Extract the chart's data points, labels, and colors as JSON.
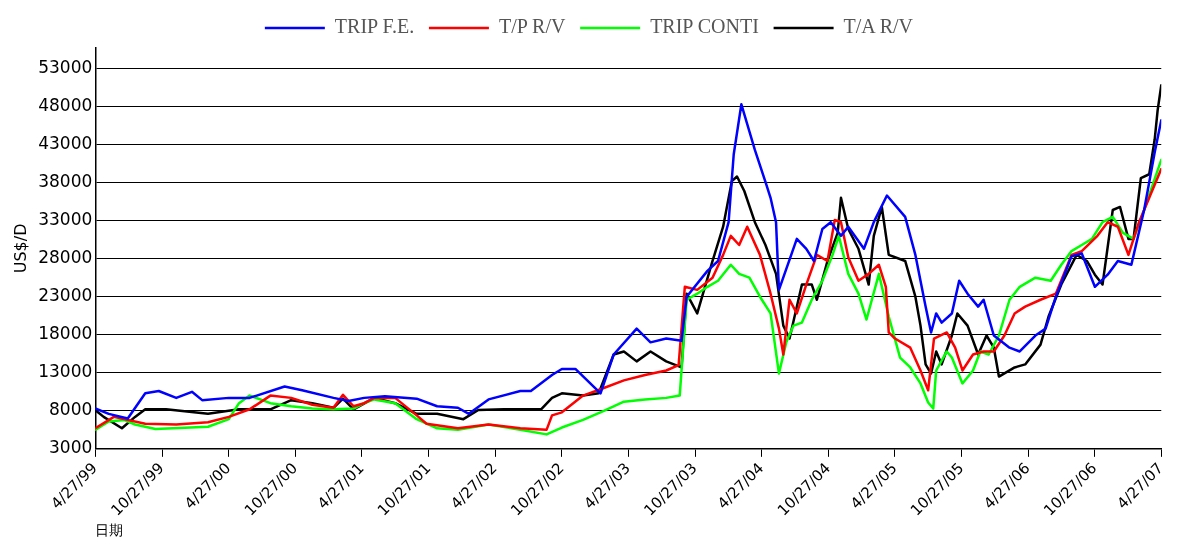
{
  "chart_data": {
    "type": "line",
    "xlabel": "日期",
    "ylabel": "US$/D",
    "legend": "top",
    "grid": "y",
    "marker": "none",
    "line_style": "solid",
    "xlim": [
      "1999-04-27",
      "2007-04-27"
    ],
    "xticks": [
      {
        "value": "1999-04-27",
        "label": "4/27/99"
      },
      {
        "value": "1999-10-27",
        "label": "10/27/99"
      },
      {
        "value": "2000-04-27",
        "label": "4/27/00"
      },
      {
        "value": "2000-10-27",
        "label": "10/27/00"
      },
      {
        "value": "2001-04-27",
        "label": "4/27/01"
      },
      {
        "value": "2001-10-27",
        "label": "10/27/01"
      },
      {
        "value": "2002-04-27",
        "label": "4/27/02"
      },
      {
        "value": "2002-10-27",
        "label": "10/27/02"
      },
      {
        "value": "2003-04-27",
        "label": "4/27/03"
      },
      {
        "value": "2003-10-27",
        "label": "10/27/03"
      },
      {
        "value": "2004-04-27",
        "label": "4/27/04"
      },
      {
        "value": "2004-10-27",
        "label": "10/27/04"
      },
      {
        "value": "2005-04-27",
        "label": "4/27/05"
      },
      {
        "value": "2005-10-27",
        "label": "10/27/05"
      },
      {
        "value": "2006-04-27",
        "label": "4/27/06"
      },
      {
        "value": "2006-10-27",
        "label": "10/27/06"
      },
      {
        "value": "2007-04-27",
        "label": "4/27/07"
      }
    ],
    "ylim": [
      3000,
      55700
    ],
    "yticks": [
      3000,
      8000,
      13000,
      18000,
      23000,
      28000,
      33000,
      38000,
      43000,
      48000,
      53000
    ],
    "series": [
      {
        "name": "TRIP F.E.",
        "color": "#0000ff",
        "x": [
          "1999-04-27",
          "1999-06-03",
          "1999-07-25",
          "1999-09-11",
          "1999-10-18",
          "1999-12-05",
          "2000-01-17",
          "2000-02-14",
          "2000-04-27",
          "2000-06-23",
          "2000-09-27",
          "2000-11-14",
          "2001-02-08",
          "2001-03-21",
          "2001-05-03",
          "2001-06-29",
          "2001-09-24",
          "2001-11-19",
          "2002-01-15",
          "2002-02-14",
          "2002-04-09",
          "2002-07-05",
          "2002-08-03",
          "2002-09-30",
          "2002-10-27",
          "2002-12-03",
          "2003-02-10",
          "2003-03-18",
          "2003-05-20",
          "2003-06-27",
          "2003-08-09",
          "2003-09-20",
          "2003-10-04",
          "2003-11-30",
          "2003-12-29",
          "2004-01-27",
          "2004-02-10",
          "2004-03-02",
          "2004-04-08",
          "2004-05-07",
          "2004-05-21",
          "2004-06-05",
          "2004-06-13",
          "2004-08-01",
          "2004-08-27",
          "2004-09-17",
          "2004-10-10",
          "2004-11-02",
          "2004-11-30",
          "2004-12-20",
          "2005-02-01",
          "2005-02-28",
          "2005-04-05",
          "2005-05-25",
          "2005-06-22",
          "2005-07-20",
          "2005-08-04",
          "2005-08-18",
          "2005-09-02",
          "2005-09-30",
          "2005-10-20",
          "2005-11-12",
          "2005-12-11",
          "2005-12-26",
          "2006-01-23",
          "2006-03-07",
          "2006-04-04",
          "2006-05-17",
          "2006-06-14",
          "2006-07-12",
          "2006-08-24",
          "2006-09-21",
          "2006-10-27",
          "2006-12-01",
          "2006-12-29",
          "2007-02-04",
          "2007-03-11",
          "2007-04-09",
          "2007-04-27"
        ],
        "values": [
          8300,
          7600,
          7000,
          10300,
          10600,
          9700,
          10500,
          9400,
          9700,
          9700,
          11200,
          10700,
          9700,
          9300,
          9700,
          9900,
          9600,
          8600,
          8400,
          7600,
          9500,
          10600,
          10600,
          12700,
          13500,
          13500,
          10300,
          15400,
          18800,
          17000,
          17500,
          17200,
          23000,
          26400,
          27700,
          32800,
          41700,
          48300,
          42300,
          38100,
          36000,
          32800,
          23900,
          30600,
          29300,
          27700,
          31900,
          32800,
          31000,
          32200,
          29300,
          32800,
          36300,
          33500,
          28500,
          21700,
          18300,
          20800,
          19600,
          20800,
          25100,
          23400,
          21700,
          22600,
          17900,
          16300,
          15800,
          17900,
          18800,
          23000,
          28300,
          28700,
          24300,
          25900,
          27700,
          27200,
          34400,
          42000,
          46200
        ]
      },
      {
        "name": "T/P R/V",
        "color": "#ff0000",
        "x": [
          "1999-04-27",
          "1999-06-17",
          "1999-09-11",
          "1999-12-05",
          "2000-03-01",
          "2000-04-27",
          "2000-06-23",
          "2000-08-19",
          "2000-10-15",
          "2000-12-12",
          "2001-02-08",
          "2001-03-06",
          "2001-04-04",
          "2001-05-03",
          "2001-05-31",
          "2001-07-27",
          "2001-09-24",
          "2001-10-21",
          "2002-01-15",
          "2002-04-09",
          "2002-07-05",
          "2002-09-15",
          "2002-09-30",
          "2002-10-27",
          "2002-12-24",
          "2003-02-19",
          "2003-04-15",
          "2003-06-12",
          "2003-08-09",
          "2003-09-12",
          "2003-09-29",
          "2003-11-02",
          "2003-12-14",
          "2004-01-12",
          "2004-02-02",
          "2004-02-25",
          "2004-03-18",
          "2004-04-22",
          "2004-05-21",
          "2004-06-13",
          "2004-06-25",
          "2004-07-12",
          "2004-08-01",
          "2004-08-27",
          "2004-09-25",
          "2004-10-24",
          "2004-11-13",
          "2004-11-30",
          "2004-12-20",
          "2005-01-17",
          "2005-02-14",
          "2005-03-14",
          "2005-04-02",
          "2005-04-10",
          "2005-04-27",
          "2005-06-08",
          "2005-07-06",
          "2005-07-27",
          "2005-08-12",
          "2005-09-16",
          "2005-10-09",
          "2005-10-29",
          "2005-11-27",
          "2005-12-26",
          "2006-01-23",
          "2006-02-21",
          "2006-03-21",
          "2006-04-19",
          "2006-05-31",
          "2006-07-12",
          "2006-08-24",
          "2006-09-21",
          "2006-11-03",
          "2006-12-01",
          "2006-12-29",
          "2007-01-27",
          "2007-02-25",
          "2007-03-25",
          "2007-04-27"
        ],
        "values": [
          5700,
          7200,
          6300,
          6200,
          6500,
          7200,
          8200,
          10000,
          9700,
          8800,
          8400,
          10100,
          8600,
          9000,
          9700,
          9700,
          7400,
          6300,
          5700,
          6200,
          5700,
          5500,
          7400,
          7800,
          10000,
          11000,
          12000,
          12700,
          13300,
          14000,
          24300,
          23900,
          25500,
          28500,
          31000,
          29800,
          32200,
          28500,
          23400,
          18800,
          15400,
          22600,
          20800,
          24600,
          28500,
          27700,
          33100,
          32800,
          28200,
          25100,
          26000,
          27200,
          24300,
          18300,
          17500,
          16300,
          13300,
          10700,
          17500,
          18300,
          16300,
          13300,
          15400,
          15800,
          15800,
          17900,
          20800,
          21700,
          22600,
          23400,
          28500,
          29000,
          31000,
          32800,
          32200,
          28500,
          32800,
          36000,
          39800
        ]
      },
      {
        "name": "TRIP CONTI",
        "color": "#00ff00",
        "x": [
          "1999-04-27",
          "1999-06-03",
          "1999-07-15",
          "1999-08-14",
          "1999-10-09",
          "2000-03-01",
          "2000-04-27",
          "2000-05-25",
          "2000-06-23",
          "2000-08-19",
          "2000-10-15",
          "2000-12-12",
          "2001-02-08",
          "2001-04-04",
          "2001-05-03",
          "2001-05-31",
          "2001-07-27",
          "2001-09-24",
          "2001-11-19",
          "2002-01-15",
          "2002-04-09",
          "2002-07-05",
          "2002-09-15",
          "2002-10-27",
          "2002-12-24",
          "2003-02-19",
          "2003-04-15",
          "2003-06-12",
          "2003-08-09",
          "2003-09-15",
          "2003-10-04",
          "2003-11-02",
          "2003-11-30",
          "2003-12-29",
          "2004-02-02",
          "2004-02-25",
          "2004-03-24",
          "2004-04-22",
          "2004-05-21",
          "2004-06-13",
          "2004-07-03",
          "2004-07-23",
          "2004-08-15",
          "2004-09-11",
          "2004-10-10",
          "2004-11-07",
          "2004-11-24",
          "2004-12-20",
          "2005-01-17",
          "2005-02-08",
          "2005-03-14",
          "2005-04-10",
          "2005-05-11",
          "2005-06-08",
          "2005-07-06",
          "2005-07-27",
          "2005-08-10",
          "2005-08-18",
          "2005-09-16",
          "2005-09-30",
          "2005-10-29",
          "2005-11-27",
          "2005-12-17",
          "2006-01-09",
          "2006-02-06",
          "2006-03-07",
          "2006-04-04",
          "2006-05-17",
          "2006-06-28",
          "2006-07-27",
          "2006-08-24",
          "2006-09-21",
          "2006-10-19",
          "2006-11-17",
          "2006-12-15",
          "2007-01-12",
          "2007-02-10",
          "2007-03-11",
          "2007-04-09",
          "2007-04-27"
        ],
        "values": [
          5500,
          6600,
          6800,
          6200,
          5600,
          5900,
          6900,
          9000,
          10000,
          9000,
          8600,
          8300,
          8200,
          8300,
          9000,
          9500,
          9000,
          6900,
          5700,
          5500,
          6200,
          5500,
          4900,
          5800,
          6800,
          8000,
          9200,
          9500,
          9700,
          10000,
          22600,
          23400,
          24300,
          25100,
          27200,
          26000,
          25500,
          23000,
          20800,
          12900,
          17000,
          19200,
          19600,
          22600,
          25100,
          28500,
          31000,
          26000,
          23400,
          20000,
          26000,
          20400,
          15000,
          13700,
          11600,
          9100,
          8300,
          13300,
          15800,
          15000,
          11600,
          13300,
          15800,
          15400,
          17900,
          22600,
          24300,
          25500,
          25100,
          27200,
          29000,
          29800,
          30600,
          32800,
          33500,
          31400,
          30600,
          34400,
          38500,
          41000
        ]
      },
      {
        "name": "T/A R/V",
        "color": "#000000",
        "x": [
          "1999-04-27",
          "1999-05-20",
          "1999-07-09",
          "1999-08-14",
          "1999-09-11",
          "1999-11-07",
          "2000-03-01",
          "2000-05-25",
          "2000-08-19",
          "2000-10-15",
          "2000-12-12",
          "2001-02-08",
          "2001-03-06",
          "2001-04-04",
          "2001-05-31",
          "2001-07-27",
          "2001-09-24",
          "2001-11-19",
          "2002-01-30",
          "2002-03-12",
          "2002-05-21",
          "2002-08-31",
          "2002-09-30",
          "2002-10-27",
          "2002-12-24",
          "2003-02-05",
          "2003-03-18",
          "2003-04-15",
          "2003-05-20",
          "2003-06-27",
          "2003-08-09",
          "2003-09-20",
          "2003-10-04",
          "2003-11-02",
          "2003-12-14",
          "2004-01-12",
          "2004-02-05",
          "2004-02-19",
          "2004-03-10",
          "2004-04-08",
          "2004-05-07",
          "2004-06-05",
          "2004-06-25",
          "2004-07-12",
          "2004-08-15",
          "2004-09-11",
          "2004-09-25",
          "2004-10-24",
          "2004-11-21",
          "2004-11-30",
          "2004-12-20",
          "2005-01-17",
          "2005-02-14",
          "2005-02-28",
          "2005-03-22",
          "2005-04-10",
          "2005-05-25",
          "2005-06-22",
          "2005-07-06",
          "2005-07-20",
          "2005-08-04",
          "2005-08-18",
          "2005-09-02",
          "2005-09-30",
          "2005-10-15",
          "2005-11-12",
          "2005-12-11",
          "2006-01-03",
          "2006-01-23",
          "2006-02-06",
          "2006-03-21",
          "2006-04-19",
          "2006-05-31",
          "2006-06-22",
          "2006-07-27",
          "2006-09-07",
          "2006-10-05",
          "2006-10-27",
          "2006-11-17",
          "2006-12-15",
          "2007-01-04",
          "2007-01-27",
          "2007-02-10",
          "2007-03-02",
          "2007-03-25",
          "2007-04-09",
          "2007-04-17",
          "2007-04-27"
        ],
        "values": [
          8100,
          7200,
          5700,
          7200,
          8200,
          8200,
          7600,
          8200,
          8200,
          9400,
          9000,
          8400,
          9600,
          8200,
          9700,
          9000,
          7600,
          7600,
          6900,
          8100,
          8200,
          8200,
          9700,
          10300,
          10000,
          10300,
          15400,
          15800,
          14500,
          15800,
          14500,
          13700,
          23400,
          20800,
          27700,
          32200,
          38200,
          38800,
          36900,
          32800,
          29800,
          26000,
          19200,
          17500,
          24600,
          24600,
          22600,
          27700,
          31400,
          36000,
          31900,
          29300,
          24600,
          31000,
          34800,
          28500,
          27700,
          23000,
          19200,
          14100,
          12900,
          15800,
          14100,
          17900,
          20800,
          19200,
          15400,
          17900,
          16300,
          12500,
          13700,
          14100,
          16700,
          20400,
          24600,
          28500,
          27700,
          25900,
          24600,
          34400,
          34800,
          30600,
          30600,
          38600,
          39100,
          43700,
          47500,
          50800
        ]
      }
    ]
  }
}
